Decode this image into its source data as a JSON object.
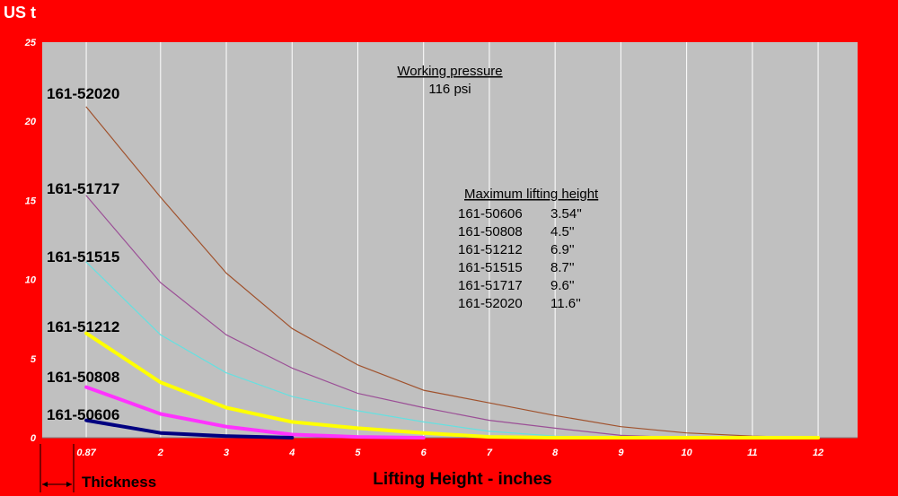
{
  "chart_data": {
    "type": "line",
    "title": "",
    "y_unit": "US t",
    "xlabel": "Lifting Height - inches",
    "thickness_label": "Thickness",
    "ylim": [
      0,
      25
    ],
    "xlim": [
      0.2,
      12.6
    ],
    "y_ticks": [
      0,
      5,
      10,
      15,
      20,
      25
    ],
    "x_ticks": [
      {
        "value": 0.87,
        "label": "0.87"
      },
      {
        "value": 2,
        "label": "2"
      },
      {
        "value": 3,
        "label": "3"
      },
      {
        "value": 4,
        "label": "4"
      },
      {
        "value": 5,
        "label": "5"
      },
      {
        "value": 6,
        "label": "6"
      },
      {
        "value": 7,
        "label": "7"
      },
      {
        "value": 8,
        "label": "8"
      },
      {
        "value": 9,
        "label": "9"
      },
      {
        "value": 10,
        "label": "10"
      },
      {
        "value": 11,
        "label": "11"
      },
      {
        "value": 12,
        "label": "12"
      }
    ],
    "grid": true,
    "series": [
      {
        "name": "161-52020",
        "color": "#a0522d",
        "width": 1.2,
        "x": [
          0.87,
          2,
          3,
          4,
          5,
          6,
          7,
          8,
          9,
          10,
          11,
          12
        ],
        "y": [
          20.9,
          15.2,
          10.4,
          6.9,
          4.6,
          3.0,
          2.2,
          1.4,
          0.7,
          0.3,
          0.1,
          0.0
        ]
      },
      {
        "name": "161-51717",
        "color": "#9b4f96",
        "width": 1.2,
        "x": [
          0.87,
          2,
          3,
          4,
          5,
          6,
          7,
          8,
          9,
          10
        ],
        "y": [
          15.3,
          9.8,
          6.5,
          4.4,
          2.8,
          1.9,
          1.1,
          0.6,
          0.15,
          0.0
        ]
      },
      {
        "name": "161-51515",
        "color": "#66e0e0",
        "width": 1.2,
        "x": [
          0.87,
          2,
          3,
          4,
          5,
          6,
          7,
          8,
          9
        ],
        "y": [
          11.1,
          6.5,
          4.1,
          2.6,
          1.7,
          1.0,
          0.4,
          0.1,
          0.0
        ]
      },
      {
        "name": "161-51212",
        "color": "#ffff00",
        "width": 4,
        "x": [
          0.87,
          2,
          3,
          4,
          5,
          6,
          7,
          8,
          12
        ],
        "y": [
          6.6,
          3.5,
          1.9,
          1.0,
          0.6,
          0.3,
          0.05,
          0.0,
          0.0
        ]
      },
      {
        "name": "161-50808",
        "color": "#ff33ff",
        "width": 4,
        "x": [
          0.87,
          2,
          3,
          4,
          5,
          6
        ],
        "y": [
          3.2,
          1.5,
          0.7,
          0.2,
          0.05,
          0.0
        ]
      },
      {
        "name": "161-50606",
        "color": "#000080",
        "width": 4,
        "x": [
          0.87,
          2,
          3,
          4
        ],
        "y": [
          1.1,
          0.3,
          0.1,
          0.0
        ]
      }
    ],
    "annotations": {
      "pressure_title": "Working pressure",
      "pressure_value": "116 psi",
      "max_height_title": "Maximum lifting height",
      "max_heights": [
        {
          "model": "161-50606",
          "value": "3.54''"
        },
        {
          "model": "161-50808",
          "value": "4.5''"
        },
        {
          "model": "161-51212",
          "value": "6.9''"
        },
        {
          "model": "161-51515",
          "value": "8.7''"
        },
        {
          "model": "161-51717",
          "value": "9.6''"
        },
        {
          "model": "161-52020",
          "value": "11.6''"
        }
      ]
    }
  }
}
